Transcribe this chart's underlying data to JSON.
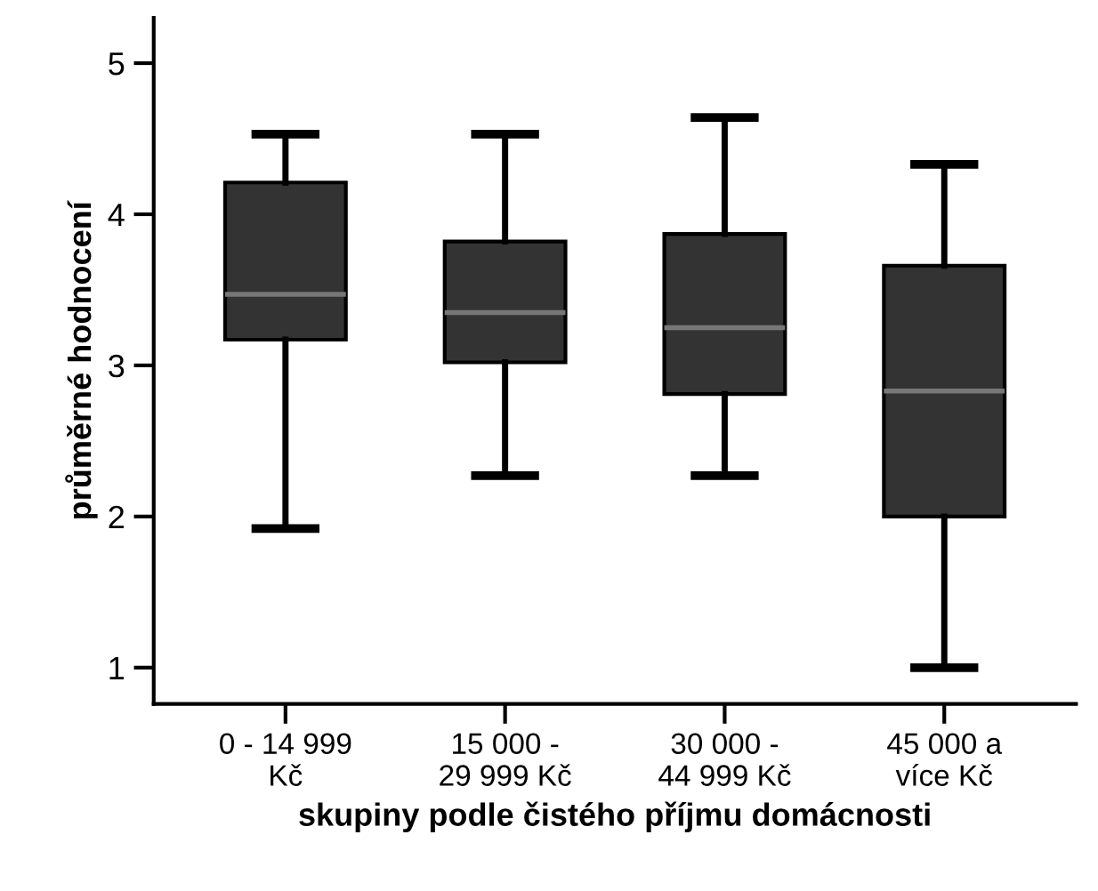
{
  "chart_data": {
    "type": "box",
    "xlabel": "skupiny podle čistého příjmu domácnosti",
    "ylabel": "průměrné hodnocení",
    "categories": [
      "0 - 14 999\nKč",
      "15 000 -\n29 999 Kč",
      "30 000 -\n44 999 Kč",
      "45 000 a\nvíce Kč"
    ],
    "boxes": [
      {
        "low": 1.92,
        "q1": 3.17,
        "median": 3.47,
        "q3": 4.21,
        "high": 4.53
      },
      {
        "low": 2.27,
        "q1": 3.02,
        "median": 3.35,
        "q3": 3.82,
        "high": 4.53
      },
      {
        "low": 2.27,
        "q1": 2.81,
        "median": 3.25,
        "q3": 3.87,
        "high": 4.64
      },
      {
        "low": 1.0,
        "q1": 2.0,
        "median": 2.83,
        "q3": 3.66,
        "high": 4.33
      }
    ],
    "color": "#333333",
    "ylim": [
      0.76,
      5.3
    ],
    "yticks": [
      1,
      2,
      3,
      4,
      5
    ],
    "grid": false
  }
}
